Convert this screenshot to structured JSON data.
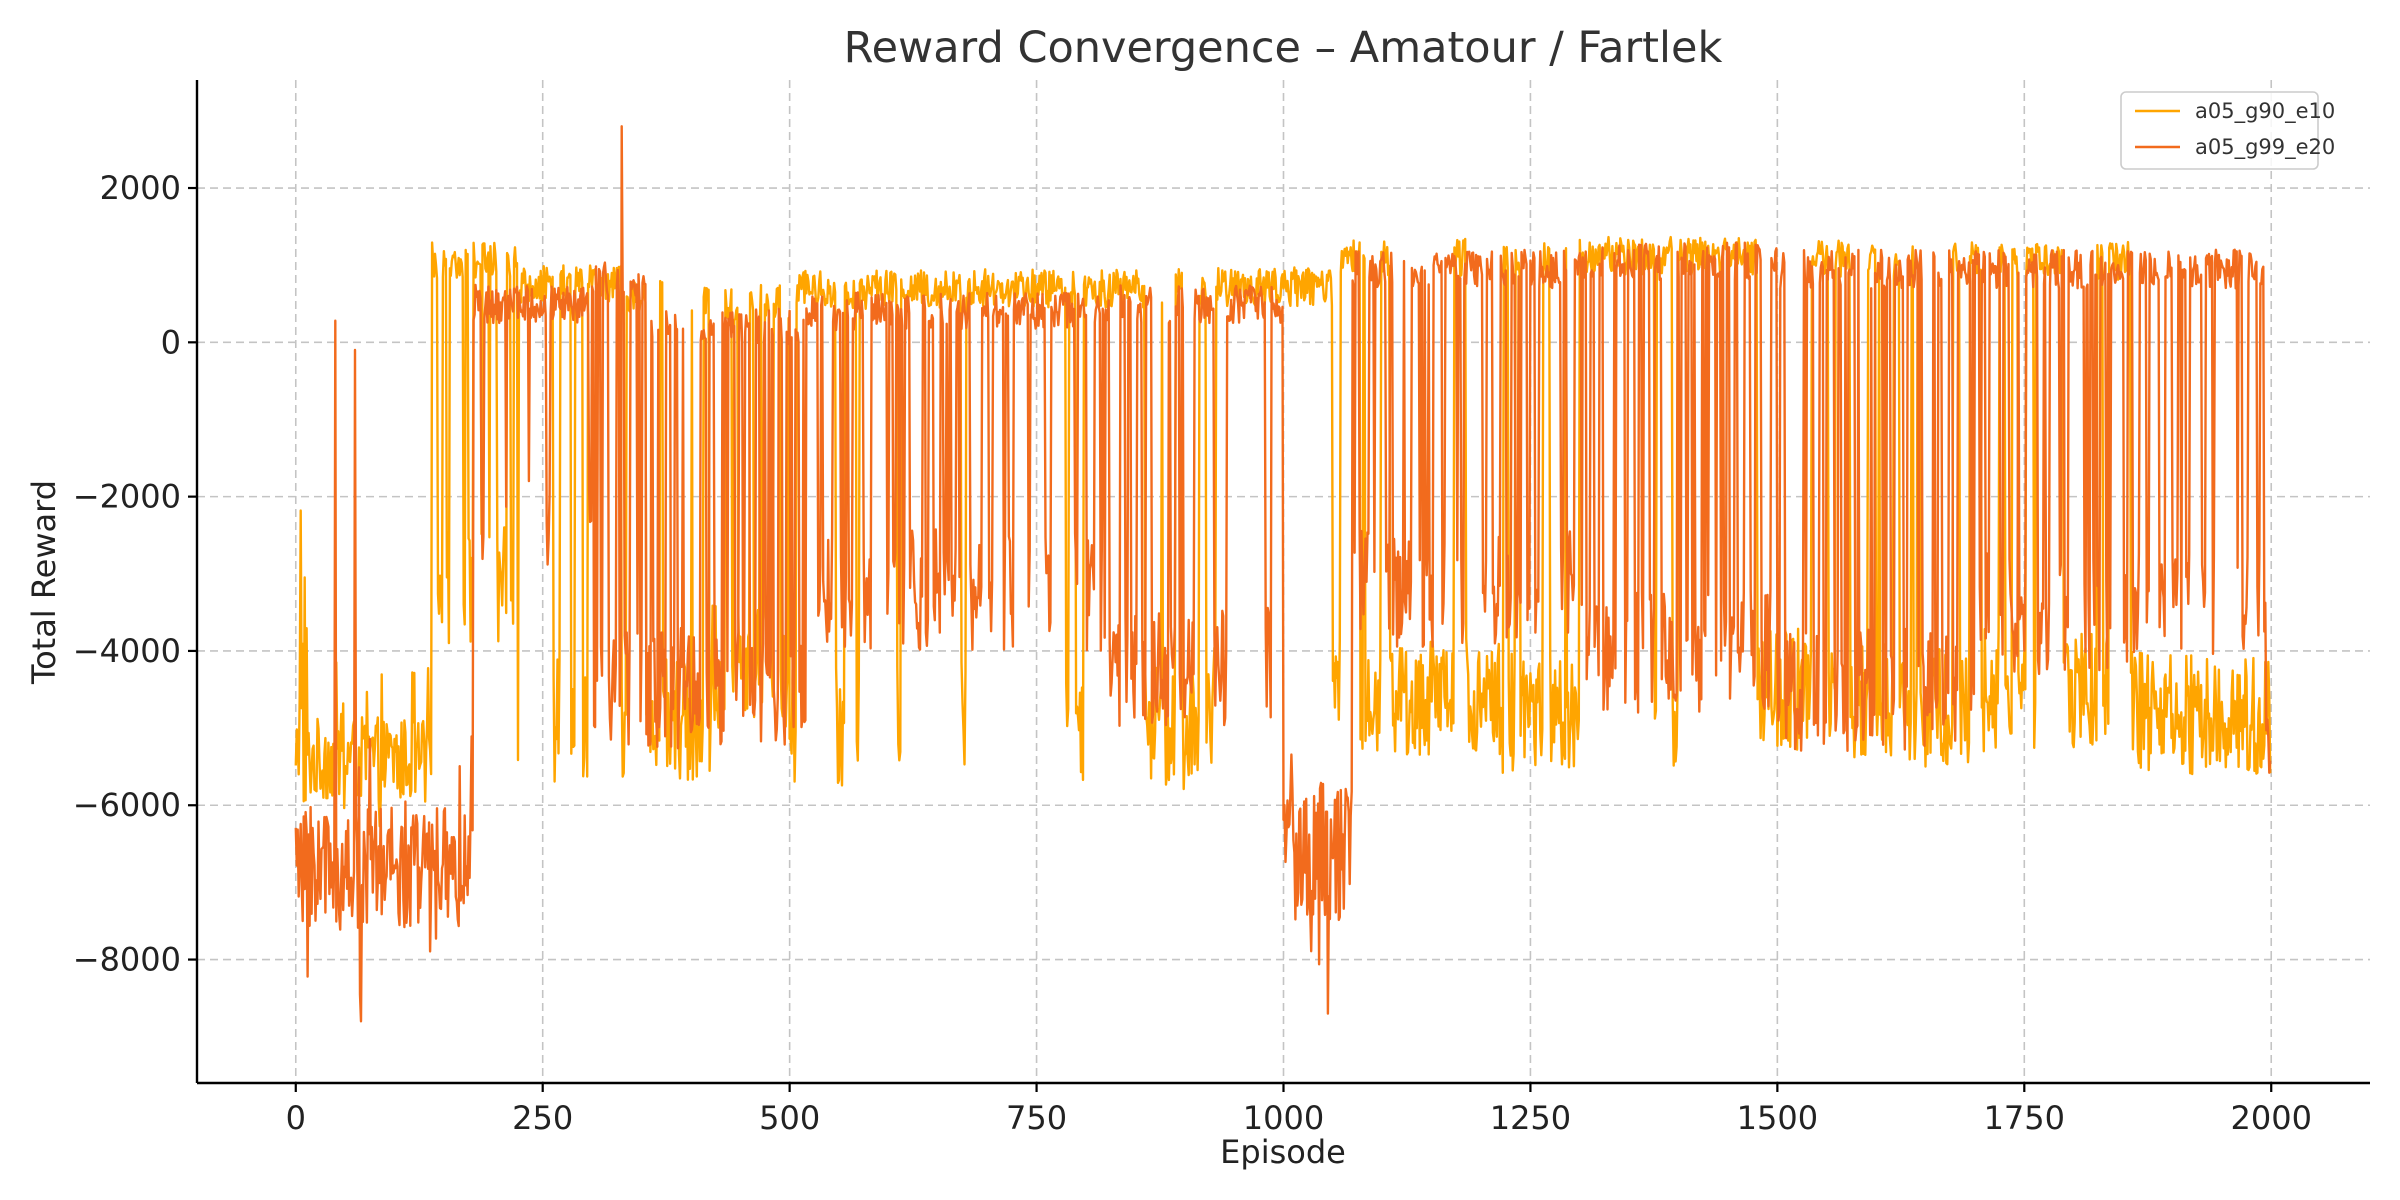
{
  "chart_data": {
    "type": "line",
    "title": "Reward Convergence – Amatour / Fartlek",
    "xlabel": "Episode",
    "ylabel": "Total Reward",
    "xlim": [
      -100,
      2100
    ],
    "ylim": [
      -9600,
      3400
    ],
    "xticks": [
      0,
      250,
      500,
      750,
      1000,
      1250,
      1500,
      1750,
      2000
    ],
    "yticks": [
      -8000,
      -6000,
      -4000,
      -2000,
      0,
      2000
    ],
    "grid": true,
    "legend_position": "top-right",
    "series": [
      {
        "name": "a05_g90_e10",
        "color": "#FFA500",
        "segments": [
          {
            "from": 0,
            "to": 12,
            "mode": "A",
            "level": -4500,
            "spread": 2800,
            "stay": 2
          },
          {
            "from": 12,
            "to": 138,
            "mode": "B",
            "level": -5400,
            "spread": 900,
            "stay": 3
          },
          {
            "from": 138,
            "to": 225,
            "mode": "C",
            "hi": 1050,
            "lo": -3200,
            "pHi": 0.6,
            "stay": 2
          },
          {
            "from": 225,
            "to": 330,
            "mode": "C",
            "hi": 750,
            "lo": -4900,
            "pHi": 0.8,
            "stay": 4
          },
          {
            "from": 330,
            "to": 420,
            "mode": "C",
            "hi": 600,
            "lo": -4900,
            "pHi": 0.4,
            "stay": 4
          },
          {
            "from": 420,
            "to": 500,
            "mode": "C",
            "hi": 500,
            "lo": -4200,
            "pHi": 0.55,
            "stay": 3
          },
          {
            "from": 500,
            "to": 620,
            "mode": "C",
            "hi": 680,
            "lo": -5000,
            "pHi": 0.8,
            "stay": 4
          },
          {
            "from": 620,
            "to": 860,
            "mode": "C",
            "hi": 700,
            "lo": -4900,
            "pHi": 0.88,
            "stay": 6
          },
          {
            "from": 860,
            "to": 930,
            "mode": "C",
            "hi": 700,
            "lo": -5000,
            "pHi": 0.25,
            "stay": 5
          },
          {
            "from": 930,
            "to": 1050,
            "mode": "C",
            "hi": 720,
            "lo": -4600,
            "pHi": 0.85,
            "stay": 6
          },
          {
            "from": 1050,
            "to": 1220,
            "mode": "C",
            "hi": 1100,
            "lo": -4600,
            "pHi": 0.15,
            "stay": 6
          },
          {
            "from": 1220,
            "to": 1300,
            "mode": "C",
            "hi": 1100,
            "lo": -4800,
            "pHi": 0.3,
            "stay": 4
          },
          {
            "from": 1300,
            "to": 1480,
            "mode": "C",
            "hi": 1120,
            "lo": -4700,
            "pHi": 0.85,
            "stay": 6
          },
          {
            "from": 1480,
            "to": 1560,
            "mode": "C",
            "hi": 1100,
            "lo": -4500,
            "pHi": 0.2,
            "stay": 6
          },
          {
            "from": 1560,
            "to": 1700,
            "mode": "C",
            "hi": 1100,
            "lo": -4700,
            "pHi": 0.5,
            "stay": 4
          },
          {
            "from": 1700,
            "to": 1860,
            "mode": "C",
            "hi": 1050,
            "lo": -4500,
            "pHi": 0.35,
            "stay": 5
          },
          {
            "from": 1860,
            "to": 2000,
            "mode": "C",
            "hi": 950,
            "lo": -4800,
            "pHi": 0.1,
            "stay": 8
          }
        ]
      },
      {
        "name": "a05_g99_e20",
        "color": "#F26B1D",
        "segments": [
          {
            "from": 0,
            "to": 180,
            "mode": "B",
            "level": -6800,
            "spread": 1300,
            "stay": 2
          },
          {
            "from": 180,
            "to": 300,
            "mode": "C",
            "hi": 500,
            "lo": -2500,
            "pHi": 0.85,
            "stay": 2
          },
          {
            "from": 300,
            "to": 360,
            "mode": "C",
            "hi": 800,
            "lo": -4500,
            "pHi": 0.6,
            "stay": 2
          },
          {
            "from": 360,
            "to": 520,
            "mode": "C",
            "hi": 200,
            "lo": -4500,
            "pHi": 0.5,
            "stay": 2
          },
          {
            "from": 520,
            "to": 820,
            "mode": "C",
            "hi": 400,
            "lo": -3200,
            "pHi": 0.6,
            "stay": 2
          },
          {
            "from": 820,
            "to": 1000,
            "mode": "C",
            "hi": 500,
            "lo": -4200,
            "pHi": 0.55,
            "stay": 3
          },
          {
            "from": 1000,
            "to": 1070,
            "mode": "B",
            "level": -6600,
            "spread": 1500,
            "stay": 2
          },
          {
            "from": 1070,
            "to": 1300,
            "mode": "C",
            "hi": 950,
            "lo": -3200,
            "pHi": 0.55,
            "stay": 2
          },
          {
            "from": 1300,
            "to": 1500,
            "mode": "C",
            "hi": 1050,
            "lo": -4000,
            "pHi": 0.6,
            "stay": 2
          },
          {
            "from": 1500,
            "to": 1700,
            "mode": "C",
            "hi": 950,
            "lo": -4500,
            "pHi": 0.5,
            "stay": 2
          },
          {
            "from": 1700,
            "to": 1995,
            "mode": "C",
            "hi": 950,
            "lo": -3500,
            "pHi": 0.6,
            "stay": 2
          },
          {
            "from": 1995,
            "to": 2000,
            "mode": "B",
            "level": -5200,
            "spread": 600,
            "stay": 1
          }
        ],
        "annotations_peaks": [
          {
            "x": 66,
            "y": -8800
          },
          {
            "x": 330,
            "y": 2800
          },
          {
            "x": 1045,
            "y": -8700
          },
          {
            "x": 40,
            "y": 280
          },
          {
            "x": 60,
            "y": -100
          }
        ]
      }
    ]
  }
}
